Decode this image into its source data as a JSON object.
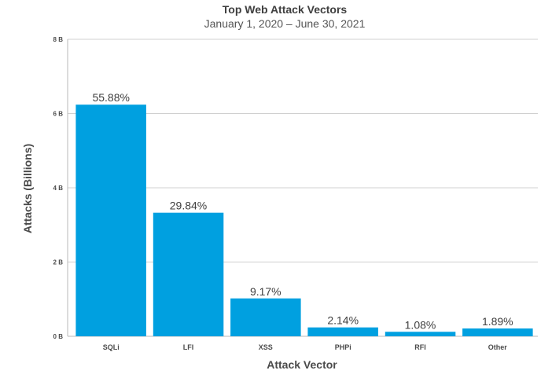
{
  "chart_data": {
    "type": "bar",
    "title": "Top Web Attack Vectors",
    "subtitle": "January 1, 2020 – June 30, 2021",
    "xlabel": "Attack Vector",
    "ylabel": "Attacks (Billions)",
    "categories": [
      "SQLi",
      "LFI",
      "XSS",
      "PHPi",
      "RFI",
      "Other"
    ],
    "values": [
      6.24,
      3.33,
      1.02,
      0.24,
      0.12,
      0.21
    ],
    "data_labels": [
      "55.88%",
      "29.84%",
      "9.17%",
      "2.14%",
      "1.08%",
      "1.89%"
    ],
    "y_ticks": [
      0,
      2,
      4,
      6,
      8
    ],
    "y_tick_labels": [
      "0 B",
      "2 B",
      "4 B",
      "6 B",
      "8 B"
    ],
    "ylim": [
      0,
      8
    ],
    "grid": true,
    "legend": "none",
    "bar_color": "#00a0e0"
  }
}
